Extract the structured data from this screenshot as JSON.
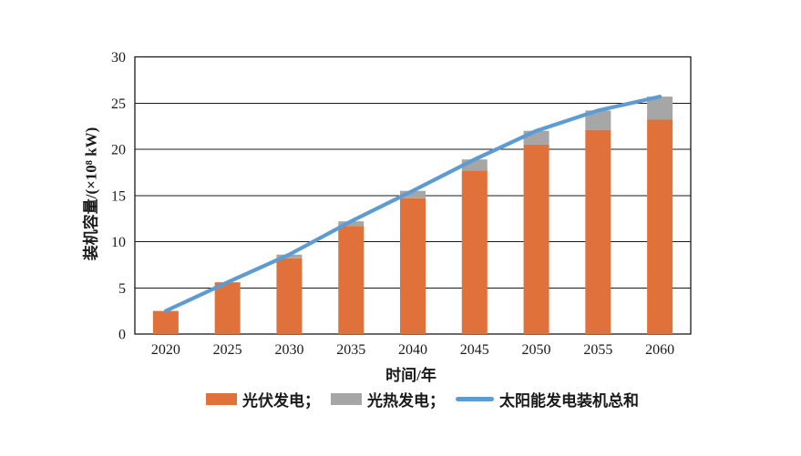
{
  "chart_data": {
    "type": "bar",
    "subtype": "stacked-bar-with-line-overlay",
    "title": "",
    "categories": [
      "2020",
      "2025",
      "2030",
      "2035",
      "2040",
      "2045",
      "2050",
      "2055",
      "2060"
    ],
    "series": [
      {
        "name": "光伏发电",
        "type": "bar",
        "color": "#E0713A",
        "values": [
          2.5,
          5.6,
          8.2,
          11.7,
          14.7,
          17.7,
          20.5,
          22.1,
          23.2
        ]
      },
      {
        "name": "光热发电",
        "type": "bar",
        "color": "#A6A6A6",
        "values": [
          0,
          0,
          0.4,
          0.5,
          0.8,
          1.2,
          1.5,
          2.1,
          2.5
        ]
      },
      {
        "name": "太阳能发电装机总和",
        "type": "line",
        "color": "#5D9BD3",
        "values": [
          2.5,
          5.6,
          8.6,
          12.2,
          15.5,
          18.9,
          22.0,
          24.2,
          25.7
        ]
      }
    ],
    "xlabel": "时间/年",
    "ylabel": "装机容量/(×10⁸ kW)",
    "ylim": [
      0,
      30
    ],
    "yticks": [
      0,
      5,
      10,
      15,
      20,
      25,
      30
    ],
    "grid": true,
    "legend_position": "bottom"
  },
  "axes": {
    "x_title": "时间/年",
    "y_title": "装机容量/(×10⁸ kW)"
  },
  "legend": {
    "items": [
      {
        "label": "光伏发电；",
        "swatch": "bar",
        "color": "#E0713A"
      },
      {
        "label": "光热发电；",
        "swatch": "bar",
        "color": "#A6A6A6"
      },
      {
        "label": "太阳能发电装机总和",
        "swatch": "line",
        "color": "#5D9BD3"
      }
    ]
  }
}
